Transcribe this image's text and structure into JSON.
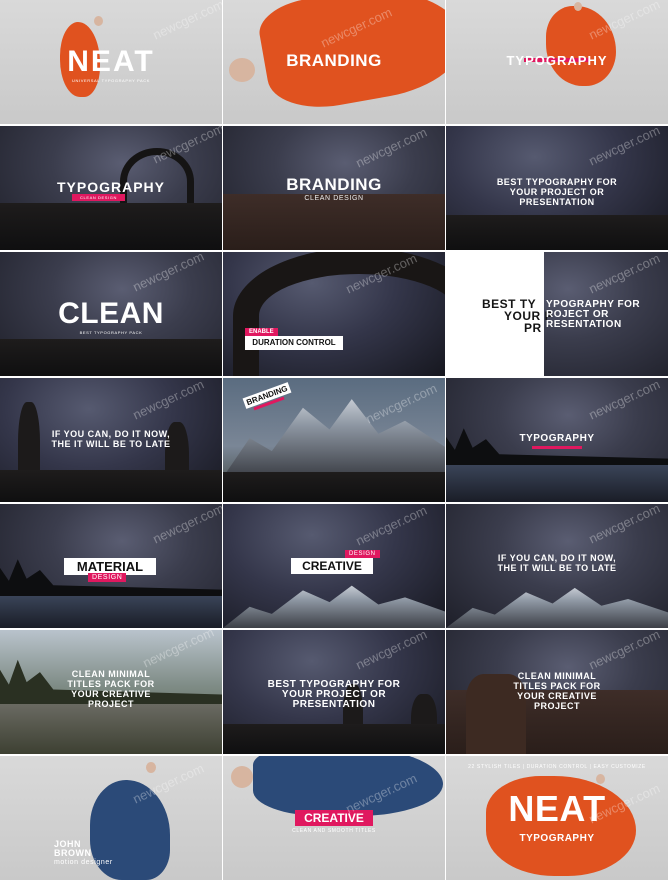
{
  "watermark": "newcger.com",
  "colors": {
    "accent": "#e0185f",
    "figure": "#e0521f",
    "figure_blue": "#2b4a78"
  },
  "tiles": {
    "t1": {
      "title": "NEAT",
      "sub": "UNIVERSAL TYPOGRAPHY PACK"
    },
    "t2": {
      "title": "BRANDING"
    },
    "t3": {
      "title": "TYPOGRAPHY"
    },
    "t4": {
      "title": "TYPOGRAPHY",
      "sub": "CLEAN DESIGN"
    },
    "t5": {
      "title": "BRANDING",
      "sub": "CLEAN DESIGN"
    },
    "t6": {
      "line1": "BEST TYPOGRAPHY FOR",
      "line2": "YOUR PROJECT OR",
      "line3": "PRESENTATION"
    },
    "t7": {
      "title": "CLEAN",
      "sub": "BEST TYPOGRAPHY PACK"
    },
    "t8": {
      "tag": "ENABLE",
      "title": "DURATION CONTROL"
    },
    "t9": {
      "left1": "BEST TY",
      "left2": "YOUR P",
      "left3": "PR",
      "right1": "YPOGRAPHY FOR",
      "right2": "ROJECT OR",
      "right3": "RESENTATION"
    },
    "t10": {
      "line1": "IF YOU CAN, DO IT NOW,",
      "line2": "THE IT WILL BE TO LATE"
    },
    "t11": {
      "title": "BRANDING"
    },
    "t12": {
      "title": "TYPOGRAPHY"
    },
    "t13": {
      "title": "MATERIAL",
      "sub": "DESIGN"
    },
    "t14": {
      "title": "CREATIVE",
      "tag": "DESIGN"
    },
    "t15": {
      "line1": "IF YOU CAN, DO IT NOW,",
      "line2": "THE IT WILL BE TO LATE"
    },
    "t16": {
      "line1": "CLEAN MINIMAL",
      "line2": "TITLES PACK FOR",
      "line3": "YOUR CREATIVE",
      "line4": "PROJECT"
    },
    "t17": {
      "line1": "BEST TYPOGRAPHY FOR",
      "line2": "YOUR PROJECT OR",
      "line3": "PRESENTATION"
    },
    "t18": {
      "line1": "CLEAN MINIMAL",
      "line2": "TITLES PACK FOR",
      "line3": "YOUR CREATIVE",
      "line4": "PROJECT"
    },
    "t19": {
      "line1": "JOHN",
      "line2": "BROWN",
      "line3": "motion designer"
    },
    "t20": {
      "title": "CREATIVE",
      "sub": "CLEAN AND SMOOTH TITLES"
    },
    "t21": {
      "top": "22 STYLISH TILES | DURATION CONTROL | EASY CUSTOMIZE",
      "title": "NEAT",
      "sub": "TYPOGRAPHY"
    }
  }
}
